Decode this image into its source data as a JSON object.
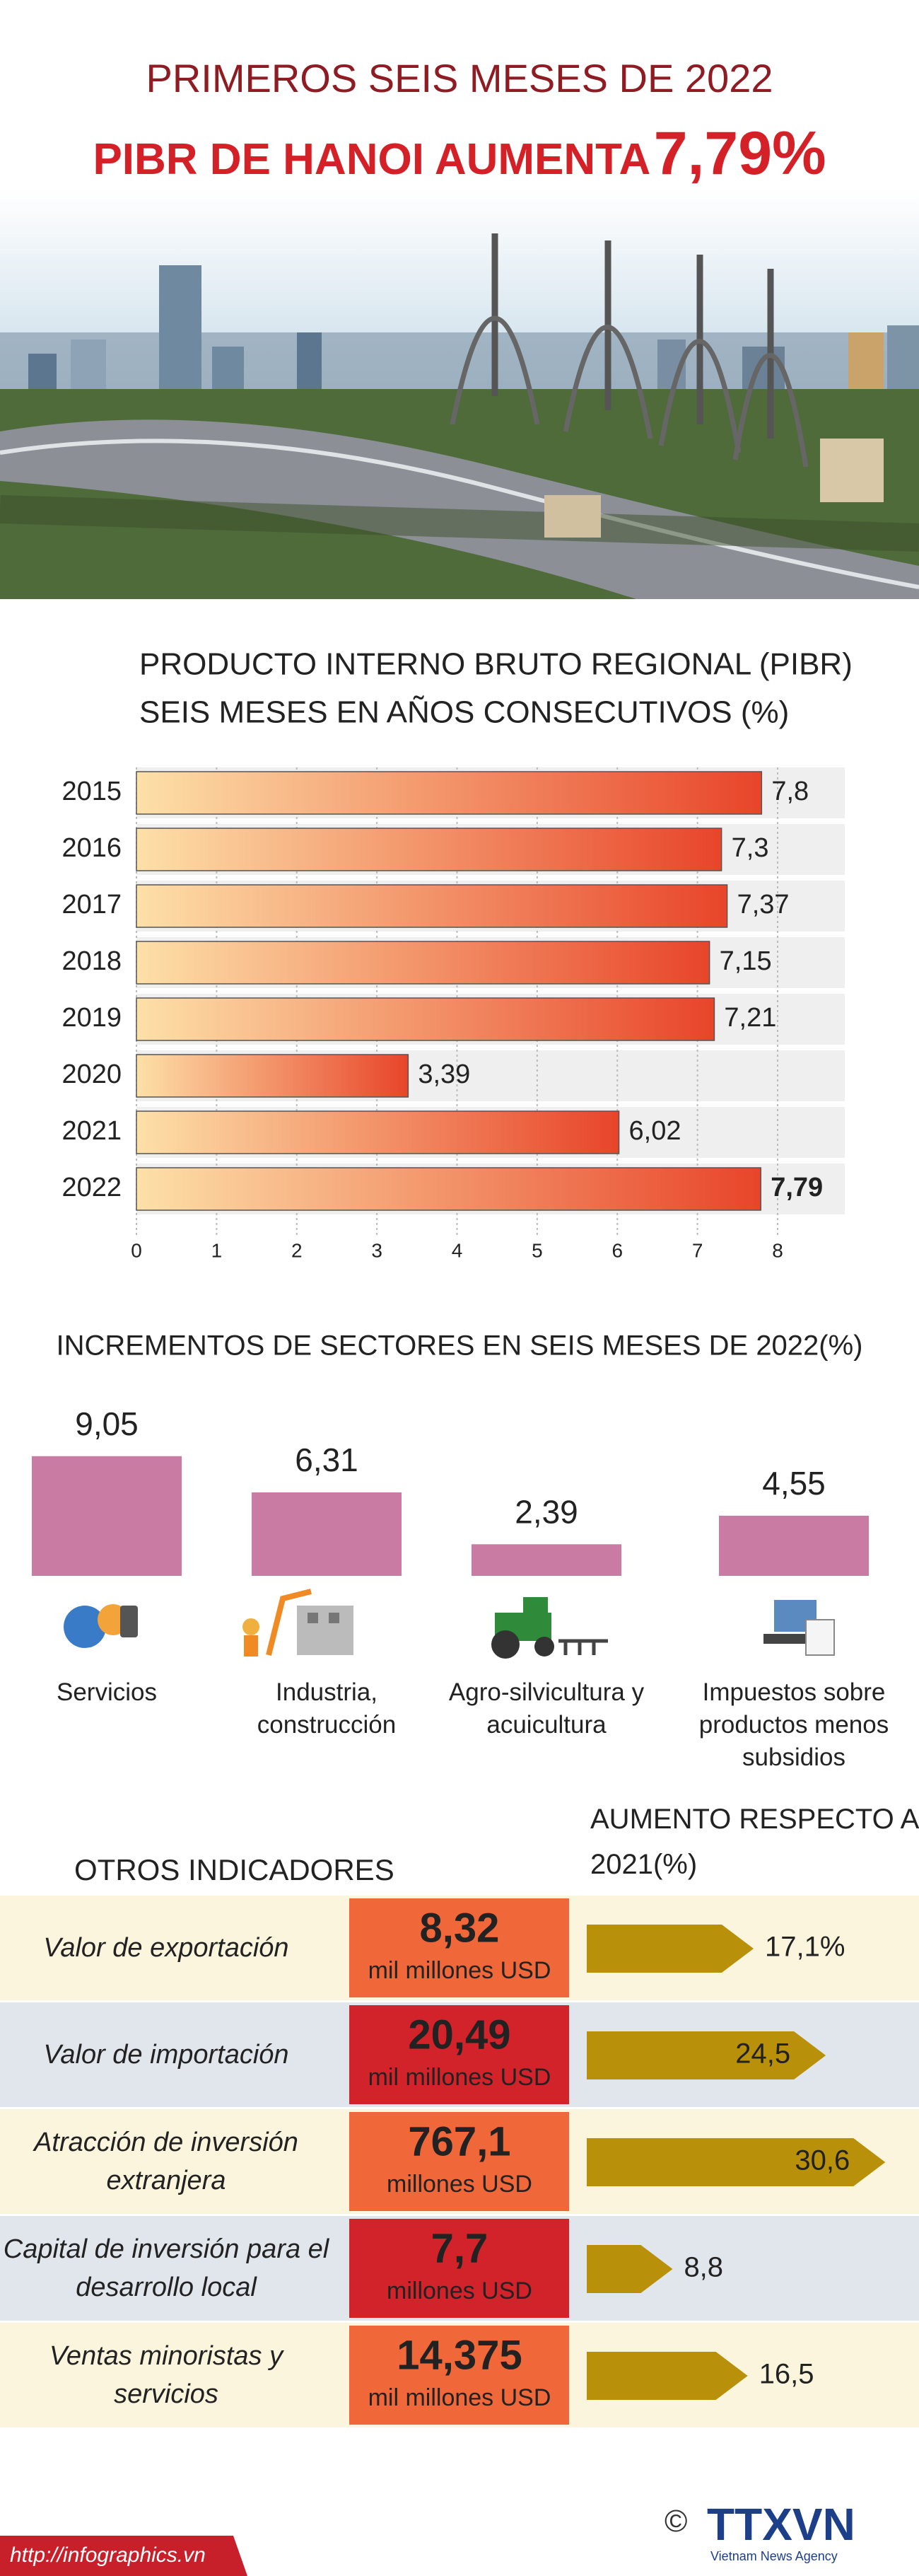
{
  "header": {
    "line1": "PRIMEROS SEIS MESES DE 2022",
    "line2": "PIBR DE HANOI AUMENTA",
    "highlight": "7,79%"
  },
  "chart_data": [
    {
      "type": "barh",
      "title": "PRODUCTO INTERNO BRUTO REGIONAL (PIBR)",
      "subtitle": "SEIS MESES EN AÑOS CONSECUTIVOS  (%)",
      "categories": [
        "2015",
        "2016",
        "2017",
        "2018",
        "2019",
        "2020",
        "2021",
        "2022"
      ],
      "values": [
        7.8,
        7.3,
        7.37,
        7.15,
        7.21,
        3.39,
        6.02,
        7.79
      ],
      "value_labels": [
        "7,8",
        "7,3",
        "7,37",
        "7,15",
        "7,21",
        "3,39",
        "6,02",
        "7,79"
      ],
      "xlim": [
        0,
        8
      ],
      "xticks": [
        0,
        1,
        2,
        3,
        4,
        5,
        6,
        7,
        8
      ],
      "grid": true
    },
    {
      "type": "bar",
      "title": "INCREMENTOS DE SECTORES EN SEIS MESES DE 2022(%)",
      "categories": [
        "Servicios",
        "Industria, construcción",
        "Agro-silvicultura y acuicultura",
        "Impuestos sobre productos menos subsidios"
      ],
      "values": [
        9.05,
        6.31,
        2.39,
        4.55
      ],
      "value_labels": [
        "9,05",
        "6,31",
        "2,39",
        "4,55"
      ],
      "color": "#c97ba3"
    },
    {
      "type": "arrow",
      "title": "OTROS INDICADORES",
      "subtitle": "AUMENTO RESPECTO A 2021(%)",
      "categories": [
        "Valor de exportación",
        "Valor de importación",
        "Atracción de inversión extranjera",
        "Capital de inversión para el desarrollo local",
        "Ventas minoristas y servicios"
      ],
      "amounts": [
        "8,32",
        "20,49",
        "767,1",
        "7,7",
        "14,375"
      ],
      "units": [
        "mil millones USD",
        "mil millones USD",
        "millones USD",
        "millones USD",
        "mil millones USD"
      ],
      "values": [
        17.1,
        24.5,
        30.6,
        8.8,
        16.5
      ],
      "value_labels": [
        "17,1%",
        "24,5",
        "30,6",
        "8,8",
        "16,5"
      ],
      "color": "#b8900a"
    }
  ],
  "footer": {
    "url": "http://infographics.vn",
    "copyright": "©",
    "logo": "TTXVN",
    "agency": "Vietnam News Agency"
  }
}
